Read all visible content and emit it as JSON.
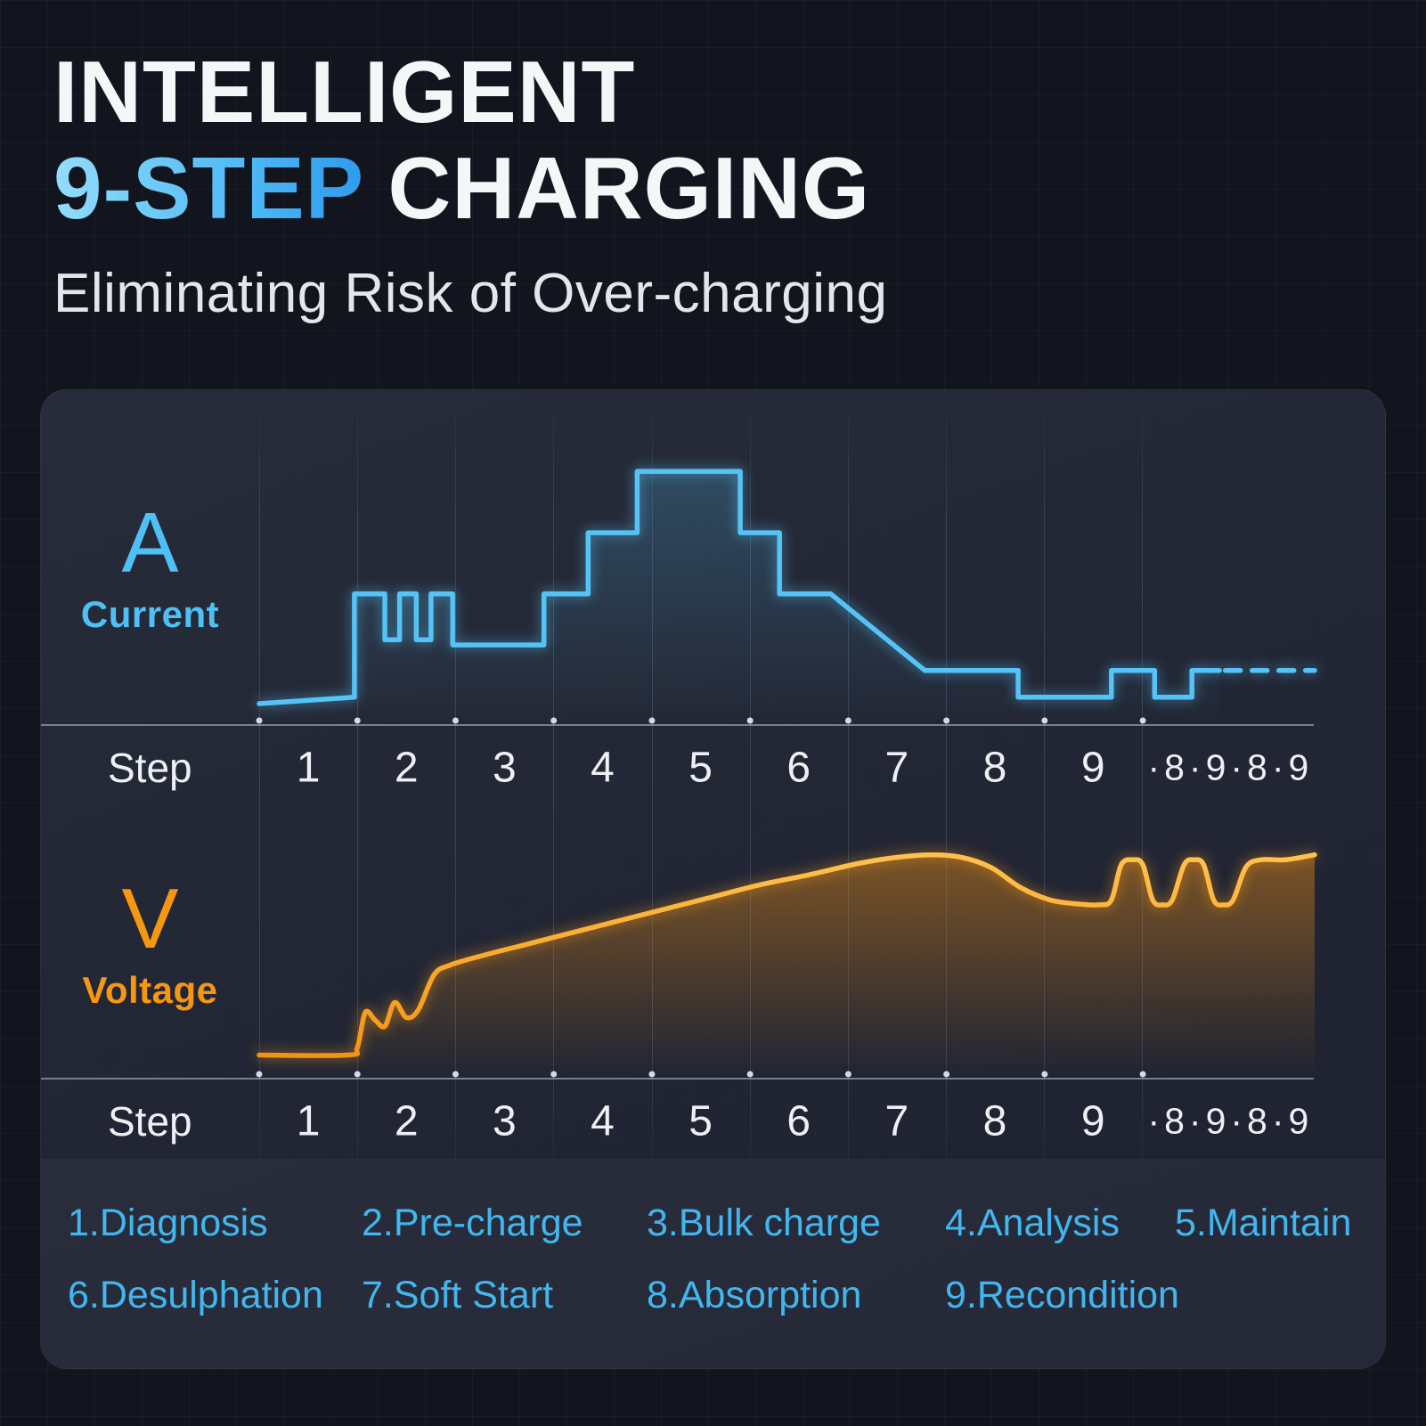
{
  "header": {
    "title_line1": "INTELLIGENT",
    "title_line2_accent": "9-STEP",
    "title_line2_rest": " CHARGING",
    "subtitle": "Eliminating Risk of Over-charging"
  },
  "axis": {
    "label": "Step",
    "steps": [
      "1",
      "2",
      "3",
      "4",
      "5",
      "6",
      "7",
      "8",
      "9"
    ],
    "extra": "·8·9·8·9"
  },
  "chart_data": [
    {
      "type": "line",
      "name": "Current",
      "unit_letter": "A",
      "unit_name": "Current",
      "color": "#55c3f6",
      "smooth": false,
      "x_max": 10.75,
      "y_max": 10.3,
      "xlabel": "Step",
      "x_categories": [
        "1",
        "2",
        "3",
        "4",
        "5",
        "6",
        "7",
        "8",
        "9",
        "·8·9·8·9"
      ],
      "points": [
        [
          0,
          0.7
        ],
        [
          0.97,
          0.95
        ],
        [
          0.97,
          5
        ],
        [
          1.28,
          5
        ],
        [
          1.28,
          3.2
        ],
        [
          1.43,
          3.2
        ],
        [
          1.43,
          5
        ],
        [
          1.6,
          5
        ],
        [
          1.6,
          3.2
        ],
        [
          1.75,
          3.2
        ],
        [
          1.75,
          5
        ],
        [
          1.97,
          5
        ],
        [
          1.97,
          3
        ],
        [
          2.9,
          3
        ],
        [
          2.9,
          5
        ],
        [
          3.35,
          5
        ],
        [
          3.35,
          7.4
        ],
        [
          3.85,
          7.4
        ],
        [
          3.85,
          9.8
        ],
        [
          4.9,
          9.8
        ],
        [
          4.9,
          7.4
        ],
        [
          5.3,
          7.4
        ],
        [
          5.3,
          5
        ],
        [
          5.82,
          5
        ],
        [
          6.78,
          2
        ],
        [
          7.73,
          2
        ],
        [
          7.73,
          0.95
        ],
        [
          8.68,
          0.95
        ],
        [
          8.68,
          2
        ],
        [
          9.12,
          2
        ],
        [
          9.12,
          0.95
        ],
        [
          9.5,
          0.95
        ],
        [
          9.5,
          2
        ],
        [
          9.78,
          2
        ]
      ],
      "dash_points": [
        [
          9.84,
          2
        ],
        [
          10.75,
          2
        ]
      ]
    },
    {
      "type": "line",
      "name": "Voltage",
      "unit_letter": "V",
      "unit_name": "Voltage",
      "color": "#f59413",
      "color_top": "#ffc14d",
      "smooth": true,
      "x_max": 10.75,
      "y_max": 9.5,
      "xlabel": "Step",
      "x_categories": [
        "1",
        "2",
        "3",
        "4",
        "5",
        "6",
        "7",
        "8",
        "9",
        "·8·9·8·9"
      ],
      "points": [
        [
          0,
          0.8
        ],
        [
          0.9,
          0.8
        ],
        [
          1.0,
          1.1
        ],
        [
          1.08,
          2.5
        ],
        [
          1.18,
          2.2
        ],
        [
          1.28,
          1.95
        ],
        [
          1.38,
          2.9
        ],
        [
          1.5,
          2.3
        ],
        [
          1.62,
          2.6
        ],
        [
          1.78,
          4.0
        ],
        [
          1.95,
          4.4
        ],
        [
          2.3,
          4.8
        ],
        [
          2.7,
          5.2
        ],
        [
          3.1,
          5.6
        ],
        [
          3.6,
          6.1
        ],
        [
          4.1,
          6.6
        ],
        [
          4.6,
          7.1
        ],
        [
          5.1,
          7.6
        ],
        [
          5.6,
          8.0
        ],
        [
          6.1,
          8.45
        ],
        [
          6.5,
          8.7
        ],
        [
          6.85,
          8.8
        ],
        [
          7.15,
          8.7
        ],
        [
          7.45,
          8.3
        ],
        [
          7.75,
          7.5
        ],
        [
          8.05,
          7.0
        ],
        [
          8.3,
          6.85
        ],
        [
          8.55,
          6.8
        ],
        [
          8.68,
          7.0
        ],
        [
          8.78,
          8.4
        ],
        [
          8.9,
          8.6
        ],
        [
          9.0,
          8.4
        ],
        [
          9.1,
          7.0
        ],
        [
          9.2,
          6.8
        ],
        [
          9.3,
          7.0
        ],
        [
          9.42,
          8.4
        ],
        [
          9.52,
          8.6
        ],
        [
          9.62,
          8.4
        ],
        [
          9.72,
          7.0
        ],
        [
          9.82,
          6.8
        ],
        [
          9.92,
          7.0
        ],
        [
          10.05,
          8.3
        ],
        [
          10.2,
          8.6
        ],
        [
          10.45,
          8.6
        ],
        [
          10.75,
          8.8
        ]
      ]
    }
  ],
  "legend": {
    "rows": [
      [
        "1.Diagnosis",
        "2.Pre-charge",
        "3.Bulk charge",
        "4.Analysis",
        "5.Maintain"
      ],
      [
        "6.Desulphation",
        "7.Soft Start",
        "8.Absorption",
        "9.Recondition"
      ]
    ]
  }
}
